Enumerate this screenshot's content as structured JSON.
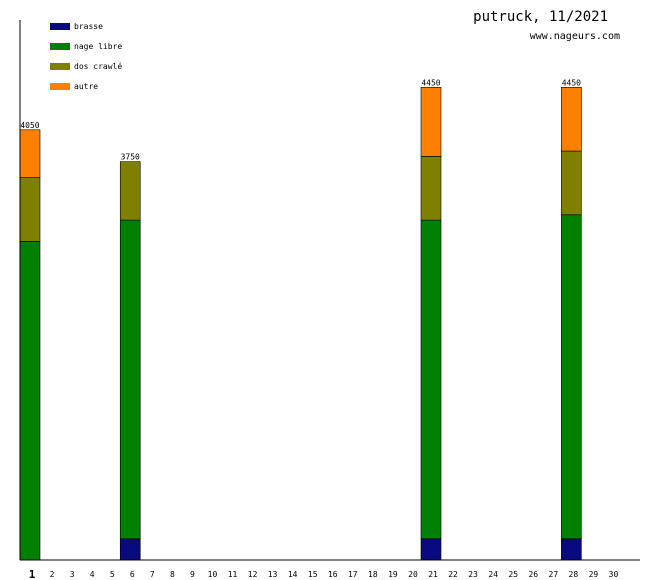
{
  "header": {
    "title": "putruck, 11/2021",
    "subtitle": "www.nageurs.com"
  },
  "chart_data": {
    "type": "bar",
    "stacked": true,
    "categories": [
      "1",
      "2",
      "3",
      "4",
      "5",
      "6",
      "7",
      "8",
      "9",
      "10",
      "11",
      "12",
      "13",
      "14",
      "15",
      "16",
      "17",
      "18",
      "19",
      "20",
      "21",
      "22",
      "23",
      "24",
      "25",
      "26",
      "27",
      "28",
      "29",
      "30"
    ],
    "highlighted_category": "1",
    "ylim": [
      0,
      4500
    ],
    "series": [
      {
        "name": "brasse",
        "color": "#0a0a80",
        "values": [
          0,
          0,
          0,
          0,
          0,
          200,
          0,
          0,
          0,
          0,
          0,
          0,
          0,
          0,
          0,
          0,
          0,
          0,
          0,
          0,
          200,
          0,
          0,
          0,
          0,
          0,
          0,
          200,
          0,
          0
        ]
      },
      {
        "name": "nage libre",
        "color": "#008000",
        "values": [
          3000,
          0,
          0,
          0,
          0,
          3000,
          0,
          0,
          0,
          0,
          0,
          0,
          0,
          0,
          0,
          0,
          0,
          0,
          0,
          0,
          3000,
          0,
          0,
          0,
          0,
          0,
          0,
          3050,
          0,
          0
        ]
      },
      {
        "name": "dos crawlé",
        "color": "#808000",
        "values": [
          600,
          0,
          0,
          0,
          0,
          550,
          0,
          0,
          0,
          0,
          0,
          0,
          0,
          0,
          0,
          0,
          0,
          0,
          0,
          0,
          600,
          0,
          0,
          0,
          0,
          0,
          0,
          600,
          0,
          0
        ]
      },
      {
        "name": "autre",
        "color": "#ff8000",
        "values": [
          450,
          0,
          0,
          0,
          0,
          0,
          0,
          0,
          0,
          0,
          0,
          0,
          0,
          0,
          0,
          0,
          0,
          0,
          0,
          0,
          650,
          0,
          0,
          0,
          0,
          0,
          0,
          600,
          0,
          0
        ]
      }
    ],
    "totals": [
      "4050",
      "",
      "",
      "",
      "",
      "3750",
      "",
      "",
      "",
      "",
      "",
      "",
      "",
      "",
      "",
      "",
      "",
      "",
      "",
      "",
      "4450",
      "",
      "",
      "",
      "",
      "",
      "",
      "4450",
      "",
      ""
    ],
    "legend_position": "top-left",
    "grid": false
  }
}
